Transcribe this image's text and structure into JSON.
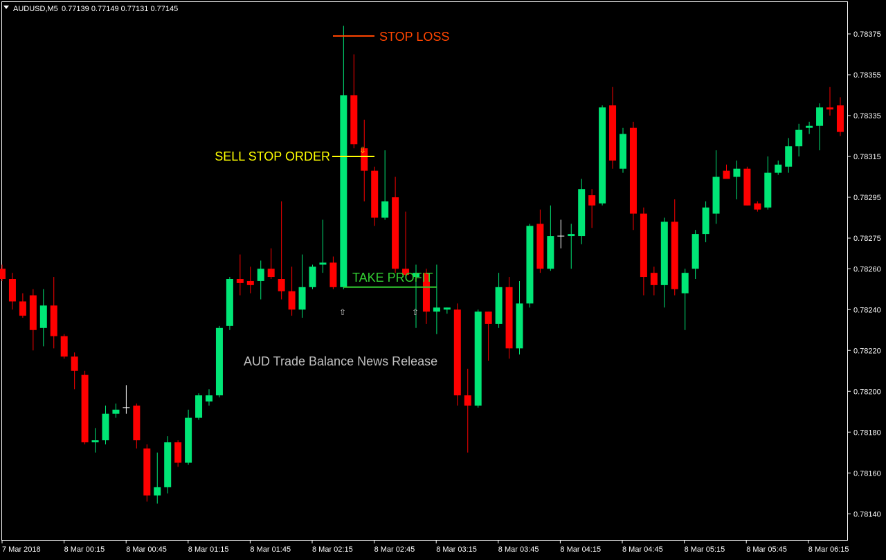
{
  "header": {
    "symbol": "AUDUSD,M5",
    "ohlc": "0.77139 0.77149 0.77131 0.77145"
  },
  "colors": {
    "background": "#000000",
    "bull": "#00e676",
    "bear": "#ff0000",
    "doji": "#ffffff",
    "axis": "#ffffff",
    "stop_loss": "#ff4500",
    "sell_stop": "#ffff00",
    "take_profit": "#32cd32",
    "annotation": "#c0c0c0",
    "arrow_sell": "#ffd700",
    "arrow_buy": "#c0c0c0"
  },
  "annotations": {
    "stop_loss": "STOP LOSS",
    "sell_stop_order": "SELL STOP ORDER",
    "take_profit": "TAKE PROFIT",
    "news": "AUD Trade Balance News Release"
  },
  "chart_data": {
    "type": "candlestick",
    "y_ticks": [
      "0.78375",
      "0.78355",
      "0.78335",
      "0.78315",
      "0.78295",
      "0.78275",
      "0.78260",
      "0.78240",
      "0.78220",
      "0.78200",
      "0.78180",
      "0.78160",
      "0.78140"
    ],
    "x_ticks": [
      "7 Mar 2018",
      "8 Mar 00:15",
      "8 Mar 00:45",
      "8 Mar 01:15",
      "8 Mar 01:45",
      "8 Mar 02:15",
      "8 Mar 02:45",
      "8 Mar 03:15",
      "8 Mar 03:45",
      "8 Mar 04:15",
      "8 Mar 04:45",
      "8 Mar 05:15",
      "8 Mar 05:45",
      "8 Mar 06:15"
    ],
    "levels": {
      "stop_loss": 0.78374,
      "sell_stop": 0.78315,
      "take_profit": 0.78251
    },
    "candles": [
      {
        "o": 0.7826,
        "h": 0.78262,
        "l": 0.78254,
        "c": 0.78255
      },
      {
        "o": 0.78255,
        "h": 0.78258,
        "l": 0.7824,
        "c": 0.78244
      },
      {
        "o": 0.78244,
        "h": 0.78248,
        "l": 0.78236,
        "c": 0.78237
      },
      {
        "o": 0.78247,
        "h": 0.7825,
        "l": 0.7822,
        "c": 0.7823
      },
      {
        "o": 0.78231,
        "h": 0.7825,
        "l": 0.78222,
        "c": 0.78242
      },
      {
        "o": 0.78242,
        "h": 0.78256,
        "l": 0.78221,
        "c": 0.78227
      },
      {
        "o": 0.78227,
        "h": 0.78228,
        "l": 0.78216,
        "c": 0.78217
      },
      {
        "o": 0.78217,
        "h": 0.78219,
        "l": 0.78201,
        "c": 0.7821
      },
      {
        "o": 0.78208,
        "h": 0.7821,
        "l": 0.78174,
        "c": 0.78175
      },
      {
        "o": 0.78175,
        "h": 0.78182,
        "l": 0.7817,
        "c": 0.78176
      },
      {
        "o": 0.78176,
        "h": 0.78193,
        "l": 0.78174,
        "c": 0.78189
      },
      {
        "o": 0.78189,
        "h": 0.78194,
        "l": 0.78187,
        "c": 0.78191
      },
      {
        "o": 0.78192,
        "h": 0.78203,
        "l": 0.78189,
        "c": 0.78192
      },
      {
        "o": 0.78193,
        "h": 0.78194,
        "l": 0.78172,
        "c": 0.78176
      },
      {
        "o": 0.78172,
        "h": 0.78174,
        "l": 0.78146,
        "c": 0.78149
      },
      {
        "o": 0.78149,
        "h": 0.7817,
        "l": 0.78145,
        "c": 0.78153
      },
      {
        "o": 0.78153,
        "h": 0.78178,
        "l": 0.7815,
        "c": 0.78175
      },
      {
        "o": 0.78175,
        "h": 0.78176,
        "l": 0.78163,
        "c": 0.78165
      },
      {
        "o": 0.78165,
        "h": 0.78191,
        "l": 0.78164,
        "c": 0.78187
      },
      {
        "o": 0.78187,
        "h": 0.78199,
        "l": 0.78186,
        "c": 0.78198
      },
      {
        "o": 0.78195,
        "h": 0.78201,
        "l": 0.78193,
        "c": 0.78198
      },
      {
        "o": 0.78198,
        "h": 0.78232,
        "l": 0.78197,
        "c": 0.78231
      },
      {
        "o": 0.78232,
        "h": 0.78256,
        "l": 0.7823,
        "c": 0.78255
      },
      {
        "o": 0.78255,
        "h": 0.78267,
        "l": 0.78247,
        "c": 0.78253
      },
      {
        "o": 0.78254,
        "h": 0.78261,
        "l": 0.78248,
        "c": 0.78252
      },
      {
        "o": 0.78254,
        "h": 0.78264,
        "l": 0.78245,
        "c": 0.7826
      },
      {
        "o": 0.7826,
        "h": 0.7827,
        "l": 0.78255,
        "c": 0.78256
      },
      {
        "o": 0.78255,
        "h": 0.78293,
        "l": 0.78245,
        "c": 0.78249
      },
      {
        "o": 0.78249,
        "h": 0.78261,
        "l": 0.78237,
        "c": 0.7824
      },
      {
        "o": 0.7824,
        "h": 0.78267,
        "l": 0.78236,
        "c": 0.78251
      },
      {
        "o": 0.78251,
        "h": 0.78262,
        "l": 0.7825,
        "c": 0.78261
      },
      {
        "o": 0.78262,
        "h": 0.78284,
        "l": 0.78258,
        "c": 0.78263
      },
      {
        "o": 0.78263,
        "h": 0.78266,
        "l": 0.7825,
        "c": 0.78251
      },
      {
        "o": 0.78251,
        "h": 0.78379,
        "l": 0.7825,
        "c": 0.78345
      },
      {
        "o": 0.78345,
        "h": 0.78365,
        "l": 0.78319,
        "c": 0.78321
      },
      {
        "o": 0.78319,
        "h": 0.78333,
        "l": 0.78293,
        "c": 0.78308
      },
      {
        "o": 0.78308,
        "h": 0.7831,
        "l": 0.78281,
        "c": 0.78285
      },
      {
        "o": 0.78285,
        "h": 0.78318,
        "l": 0.78284,
        "c": 0.78293
      },
      {
        "o": 0.78295,
        "h": 0.78305,
        "l": 0.78258,
        "c": 0.7826
      },
      {
        "o": 0.7826,
        "h": 0.78288,
        "l": 0.78256,
        "c": 0.78257
      },
      {
        "o": 0.78256,
        "h": 0.78262,
        "l": 0.78231,
        "c": 0.78258
      },
      {
        "o": 0.78258,
        "h": 0.7826,
        "l": 0.78233,
        "c": 0.78239
      },
      {
        "o": 0.78239,
        "h": 0.78262,
        "l": 0.78228,
        "c": 0.78241
      },
      {
        "o": 0.7824,
        "h": 0.78241,
        "l": 0.78238,
        "c": 0.78241
      },
      {
        "o": 0.7824,
        "h": 0.78243,
        "l": 0.78193,
        "c": 0.78198
      },
      {
        "o": 0.78198,
        "h": 0.78211,
        "l": 0.7817,
        "c": 0.78193
      },
      {
        "o": 0.78193,
        "h": 0.7824,
        "l": 0.78192,
        "c": 0.78239
      },
      {
        "o": 0.78239,
        "h": 0.78239,
        "l": 0.78215,
        "c": 0.78233
      },
      {
        "o": 0.78233,
        "h": 0.78258,
        "l": 0.78231,
        "c": 0.78251
      },
      {
        "o": 0.78251,
        "h": 0.78256,
        "l": 0.78216,
        "c": 0.78221
      },
      {
        "o": 0.78221,
        "h": 0.78254,
        "l": 0.78218,
        "c": 0.78243
      },
      {
        "o": 0.78243,
        "h": 0.78282,
        "l": 0.78241,
        "c": 0.78281
      },
      {
        "o": 0.78282,
        "h": 0.78289,
        "l": 0.78258,
        "c": 0.7826
      },
      {
        "o": 0.7826,
        "h": 0.78291,
        "l": 0.78259,
        "c": 0.78276
      },
      {
        "o": 0.78276,
        "h": 0.78284,
        "l": 0.7827,
        "c": 0.78276
      },
      {
        "o": 0.78276,
        "h": 0.78282,
        "l": 0.7826,
        "c": 0.78277
      },
      {
        "o": 0.78276,
        "h": 0.78304,
        "l": 0.78272,
        "c": 0.78299
      },
      {
        "o": 0.78296,
        "h": 0.78299,
        "l": 0.7828,
        "c": 0.78291
      },
      {
        "o": 0.78292,
        "h": 0.7834,
        "l": 0.78291,
        "c": 0.78339
      },
      {
        "o": 0.7834,
        "h": 0.78349,
        "l": 0.78309,
        "c": 0.78313
      },
      {
        "o": 0.78309,
        "h": 0.78329,
        "l": 0.78307,
        "c": 0.78326
      },
      {
        "o": 0.78329,
        "h": 0.78332,
        "l": 0.78279,
        "c": 0.78287
      },
      {
        "o": 0.78287,
        "h": 0.7829,
        "l": 0.78247,
        "c": 0.78256
      },
      {
        "o": 0.78258,
        "h": 0.78261,
        "l": 0.78247,
        "c": 0.78252
      },
      {
        "o": 0.78252,
        "h": 0.78285,
        "l": 0.78241,
        "c": 0.78283
      },
      {
        "o": 0.78283,
        "h": 0.78294,
        "l": 0.78247,
        "c": 0.7825
      },
      {
        "o": 0.78248,
        "h": 0.7826,
        "l": 0.7823,
        "c": 0.78258
      },
      {
        "o": 0.7826,
        "h": 0.78279,
        "l": 0.78255,
        "c": 0.78277
      },
      {
        "o": 0.78277,
        "h": 0.78293,
        "l": 0.78273,
        "c": 0.7829
      },
      {
        "o": 0.78287,
        "h": 0.78318,
        "l": 0.78282,
        "c": 0.78305
      },
      {
        "o": 0.78308,
        "h": 0.78311,
        "l": 0.78306,
        "c": 0.78304
      },
      {
        "o": 0.78305,
        "h": 0.78313,
        "l": 0.78294,
        "c": 0.78309
      },
      {
        "o": 0.78309,
        "h": 0.7831,
        "l": 0.78291,
        "c": 0.78291
      },
      {
        "o": 0.78292,
        "h": 0.78293,
        "l": 0.78288,
        "c": 0.78289
      },
      {
        "o": 0.7829,
        "h": 0.78315,
        "l": 0.78289,
        "c": 0.78307
      },
      {
        "o": 0.78307,
        "h": 0.78313,
        "l": 0.78306,
        "c": 0.78311
      },
      {
        "o": 0.7831,
        "h": 0.78324,
        "l": 0.78307,
        "c": 0.7832
      },
      {
        "o": 0.7832,
        "h": 0.78331,
        "l": 0.78315,
        "c": 0.78328
      },
      {
        "o": 0.78329,
        "h": 0.78332,
        "l": 0.78326,
        "c": 0.7833
      },
      {
        "o": 0.7833,
        "h": 0.78341,
        "l": 0.78318,
        "c": 0.78339
      },
      {
        "o": 0.78339,
        "h": 0.78349,
        "l": 0.78335,
        "c": 0.78338
      },
      {
        "o": 0.7834,
        "h": 0.78344,
        "l": 0.78325,
        "c": 0.78327
      }
    ]
  }
}
